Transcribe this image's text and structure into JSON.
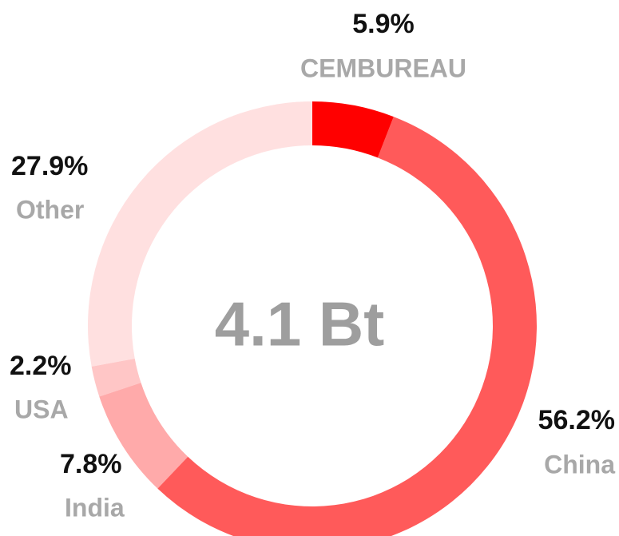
{
  "chart_data": {
    "type": "donut",
    "center_text": "4.1 Bt",
    "categories": [
      "CEMBUREAU",
      "China",
      "India",
      "USA",
      "Other"
    ],
    "values": [
      5.9,
      56.2,
      7.8,
      2.2,
      27.9
    ],
    "value_labels": [
      "5.9%",
      "56.2%",
      "7.8%",
      "2.2%",
      "27.9%"
    ],
    "colors": [
      "#ff0000",
      "#ff5a5a",
      "#ffaaaa",
      "#ffc6c6",
      "#ffe0e0"
    ]
  }
}
